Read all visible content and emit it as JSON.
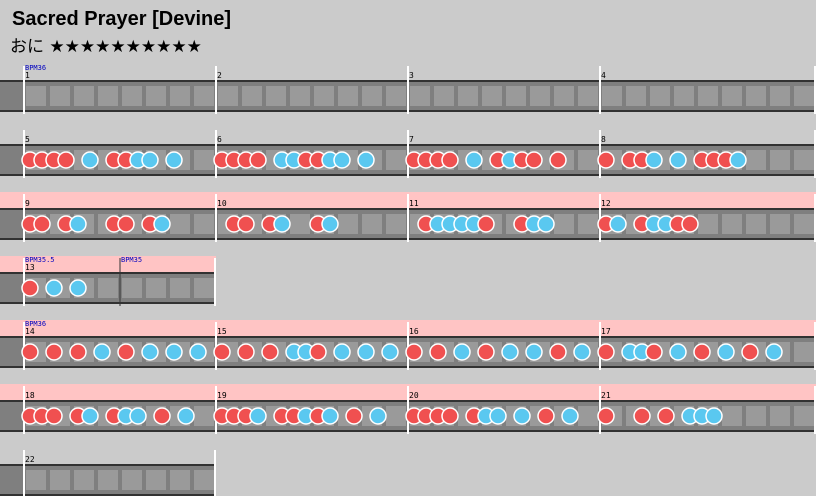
{
  "song": {
    "title": "Sacred Prayer [Devine]",
    "difficulty_label": "おに",
    "stars": "★★★★★★★★★★",
    "star_count": 10
  },
  "colors": {
    "background": "#cbcbcb",
    "lane": "#7f7f7f",
    "lane_cell": "#9a9a9a",
    "gogo_band": "#ffc4c4",
    "don": "#f05050",
    "ka": "#5ac8f0",
    "bpm_text": "#0000c0",
    "barline": "#ffffff"
  },
  "icons": {
    "don_note": "red-circle",
    "ka_note": "blue-circle"
  },
  "rows": [
    {
      "gogo": false,
      "measures": [
        {
          "number": "1",
          "bpm": "BPM36",
          "notes": ""
        },
        {
          "number": "2",
          "bpm": "",
          "notes": ""
        },
        {
          "number": "3",
          "bpm": "",
          "notes": ""
        },
        {
          "number": "4",
          "bpm": "",
          "notes": ""
        }
      ]
    },
    {
      "gogo": false,
      "measures": [
        {
          "number": "5",
          "bpm": "",
          "notes": "dddd0k0ddkk0k000"
        },
        {
          "number": "6",
          "bpm": "",
          "notes": "dddd0kkddkk0k000"
        },
        {
          "number": "7",
          "bpm": "",
          "notes": "dddd0k0dkdd0d000"
        },
        {
          "number": "8",
          "bpm": "",
          "notes": "d0ddk0k0dddk0000"
        }
      ]
    },
    {
      "gogo": true,
      "measures": [
        {
          "number": "9",
          "bpm": "",
          "notes": "dd0dk00dd0dk0000"
        },
        {
          "number": "10",
          "bpm": "",
          "notes": "0dd0dk00dk000000"
        },
        {
          "number": "11",
          "bpm": "",
          "notes": "0dkkkkd00dkk0000"
        },
        {
          "number": "12",
          "bpm": "",
          "notes": "dk0dkkdd00000000"
        }
      ]
    },
    {
      "gogo": true,
      "measures": [
        {
          "number": "13",
          "bpm": "BPM35.5",
          "notes": "d0k0k00000000000"
        }
      ],
      "extra_bpm": "BPM35"
    },
    {
      "gogo": true,
      "measures": [
        {
          "number": "14",
          "bpm": "BPM36",
          "notes": "d0d0d0k0d0k0k0k0"
        },
        {
          "number": "15",
          "bpm": "",
          "notes": "d0d0d0kkd0k0k0k0"
        },
        {
          "number": "16",
          "bpm": "",
          "notes": "d0d0k0d0k0k0d0k0"
        },
        {
          "number": "17",
          "bpm": "",
          "notes": "d0kkd0k0d0k0d0k0"
        }
      ]
    },
    {
      "gogo": true,
      "measures": [
        {
          "number": "18",
          "bpm": "",
          "notes": "ddd0dk0dkk0d0k00"
        },
        {
          "number": "19",
          "bpm": "",
          "notes": "dddk0ddkdk0d0k00"
        },
        {
          "number": "20",
          "bpm": "",
          "notes": "dddd0dkk0k0d0k00"
        },
        {
          "number": "21",
          "bpm": "",
          "notes": "d00d0d0kkk000000"
        }
      ]
    },
    {
      "gogo": false,
      "measures": [
        {
          "number": "22",
          "bpm": "",
          "notes": ""
        }
      ]
    }
  ]
}
